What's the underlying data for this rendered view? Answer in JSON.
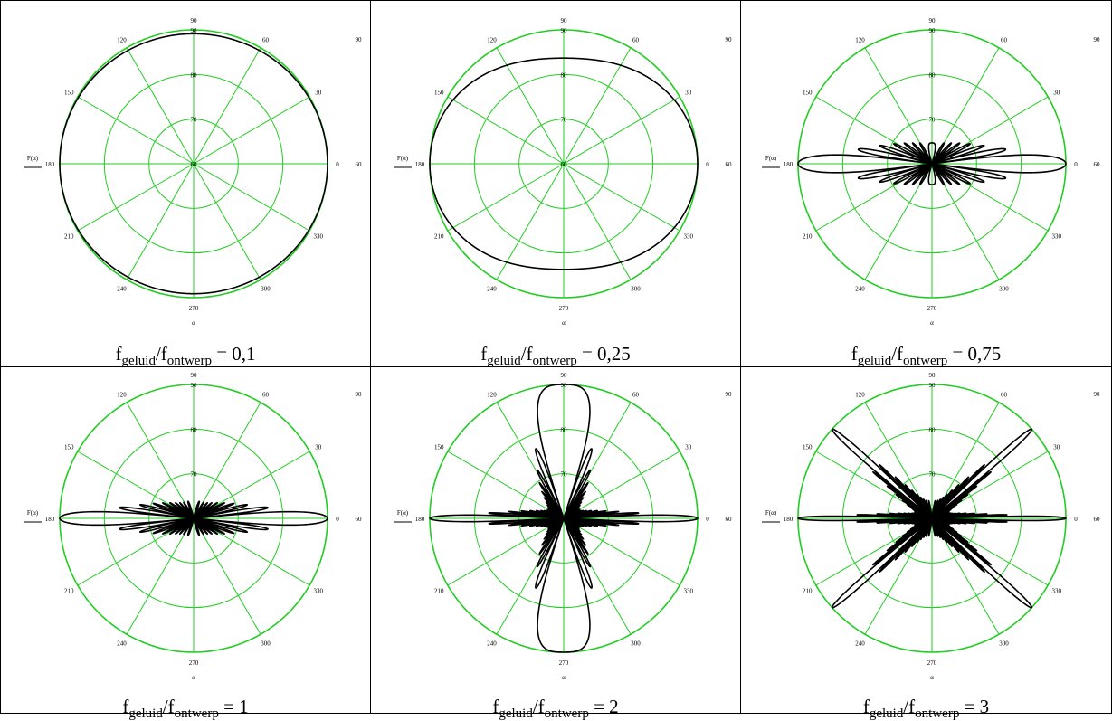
{
  "chart_data": [
    {
      "type": "polar",
      "r_label": "F(α)",
      "theta_label": "α",
      "r_range": [
        60,
        90
      ],
      "r_ticks": [
        "60",
        "70",
        "80",
        "90"
      ],
      "r_tick_right_top": "90",
      "r_tick_right_mid": "60",
      "theta_ticks": [
        "0",
        "30",
        "60",
        "90",
        "120",
        "150",
        "180",
        "210",
        "240",
        "270",
        "300",
        "330"
      ],
      "grid": true,
      "grid_color": "#22cc22",
      "line_color": "#000000",
      "pattern": {
        "ratio": 0.1,
        "elements": 5
      },
      "caption": {
        "f": "f",
        "sub1": "geluid",
        "slash": "/",
        "f2": "f",
        "sub2": "ontwerp",
        "eq": " = 0,1"
      }
    },
    {
      "type": "polar",
      "r_label": "F(α)",
      "theta_label": "α",
      "r_range": [
        60,
        90
      ],
      "r_ticks": [
        "60",
        "70",
        "80",
        "90"
      ],
      "r_tick_right_top": "90",
      "r_tick_right_mid": "60",
      "theta_ticks": [
        "0",
        "30",
        "60",
        "90",
        "120",
        "150",
        "180",
        "210",
        "240",
        "270",
        "300",
        "330"
      ],
      "grid": true,
      "grid_color": "#22cc22",
      "line_color": "#000000",
      "pattern": {
        "ratio": 0.25,
        "elements": 5
      },
      "caption": {
        "f": "f",
        "sub1": "geluid",
        "slash": "/",
        "f2": "f",
        "sub2": "ontwerp",
        "eq": " = 0,25"
      }
    },
    {
      "type": "polar",
      "r_label": "F(α)",
      "theta_label": "α",
      "r_range": [
        60,
        90
      ],
      "r_ticks": [
        "60",
        "70",
        "80",
        "90"
      ],
      "r_tick_right_top": "90",
      "r_tick_right_mid": "60",
      "theta_ticks": [
        "0",
        "30",
        "60",
        "90",
        "120",
        "150",
        "180",
        "210",
        "240",
        "270",
        "300",
        "330"
      ],
      "grid": true,
      "grid_color": "#22cc22",
      "line_color": "#000000",
      "pattern": {
        "ratio": 0.75,
        "elements": 20
      },
      "caption": {
        "f": "f",
        "sub1": "geluid",
        "slash": "/",
        "f2": "f",
        "sub2": "ontwerp",
        "eq": " = 0,75"
      }
    },
    {
      "type": "polar",
      "r_label": "F(α)",
      "theta_label": "α",
      "r_range": [
        60,
        90
      ],
      "r_ticks": [
        "60",
        "70",
        "80",
        "90"
      ],
      "r_tick_right_top": "90",
      "r_tick_right_mid": "60",
      "theta_ticks": [
        "0",
        "30",
        "60",
        "90",
        "120",
        "150",
        "180",
        "210",
        "240",
        "270",
        "300",
        "330"
      ],
      "grid": true,
      "grid_color": "#22cc22",
      "line_color": "#000000",
      "pattern": {
        "ratio": 1,
        "elements": 20
      },
      "caption": {
        "f": "f",
        "sub1": "geluid",
        "slash": "/",
        "f2": "f",
        "sub2": "ontwerp",
        "eq": " = 1"
      }
    },
    {
      "type": "polar",
      "r_label": "F(α)",
      "theta_label": "α",
      "r_range": [
        60,
        90
      ],
      "r_ticks": [
        "60",
        "70",
        "80",
        "90"
      ],
      "r_tick_right_top": "90",
      "r_tick_right_mid": "60",
      "theta_ticks": [
        "0",
        "30",
        "60",
        "90",
        "120",
        "150",
        "180",
        "210",
        "240",
        "270",
        "300",
        "330"
      ],
      "grid": true,
      "grid_color": "#22cc22",
      "line_color": "#000000",
      "pattern": {
        "ratio": 2,
        "elements": 20
      },
      "caption": {
        "f": "f",
        "sub1": "geluid",
        "slash": "/",
        "f2": "f",
        "sub2": "ontwerp",
        "eq": " = 2"
      }
    },
    {
      "type": "polar",
      "r_label": "F(α)",
      "theta_label": "α",
      "r_range": [
        60,
        90
      ],
      "r_ticks": [
        "60",
        "70",
        "80",
        "90"
      ],
      "r_tick_right_top": "90",
      "r_tick_right_mid": "60",
      "theta_ticks": [
        "0",
        "30",
        "60",
        "90",
        "120",
        "150",
        "180",
        "210",
        "240",
        "270",
        "300",
        "330"
      ],
      "grid": true,
      "grid_color": "#22cc22",
      "line_color": "#000000",
      "pattern": {
        "ratio": 3,
        "elements": 20
      },
      "caption": {
        "f": "f",
        "sub1": "geluid",
        "slash": "/",
        "f2": "f",
        "sub2": "ontwerp",
        "eq": " = 3"
      }
    }
  ]
}
